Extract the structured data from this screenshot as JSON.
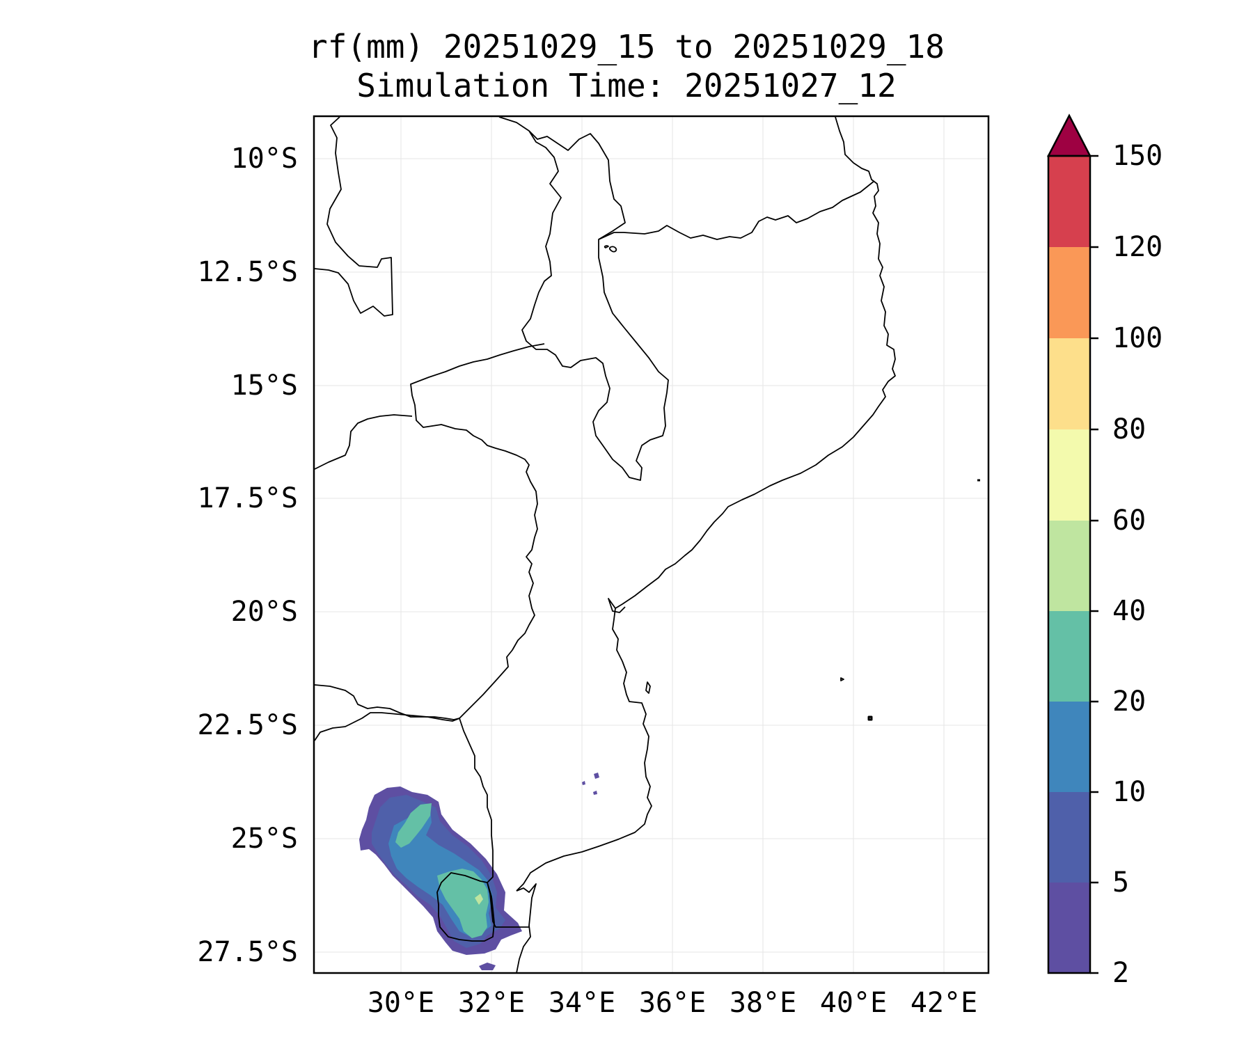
{
  "title_line1": "rf(mm) 20251029_15 to 20251029_18",
  "title_line2": "Simulation Time: 20251027_12",
  "axes": {
    "lat_ticks": [
      "10°S",
      "12.5°S",
      "15°S",
      "17.5°S",
      "20°S",
      "22.5°S",
      "25°S",
      "27.5°S"
    ],
    "lon_ticks": [
      "30°E",
      "32°E",
      "34°E",
      "36°E",
      "38°E",
      "40°E",
      "42°E"
    ],
    "lon_range": [
      28.1,
      43.0
    ],
    "lat_range": [
      -28.0,
      -9.1
    ],
    "grid": true
  },
  "colorbar": {
    "ticks": [
      "2",
      "5",
      "10",
      "20",
      "40",
      "60",
      "80",
      "100",
      "120",
      "150"
    ],
    "colors": [
      "#5e4fa2",
      "#4f60aa",
      "#3f86bc",
      "#64c0a6",
      "#bfe5a0",
      "#f3faad",
      "#fddf8b",
      "#fa9857",
      "#d6404e",
      "#9e0142"
    ],
    "extend": "max"
  },
  "rain_levels": {
    "lvl2": "#5e4fa2",
    "lvl5": "#4f60aa",
    "lvl10": "#3f86bc",
    "lvl20": "#64c0a6",
    "lvl40": "#bfe5a0"
  }
}
